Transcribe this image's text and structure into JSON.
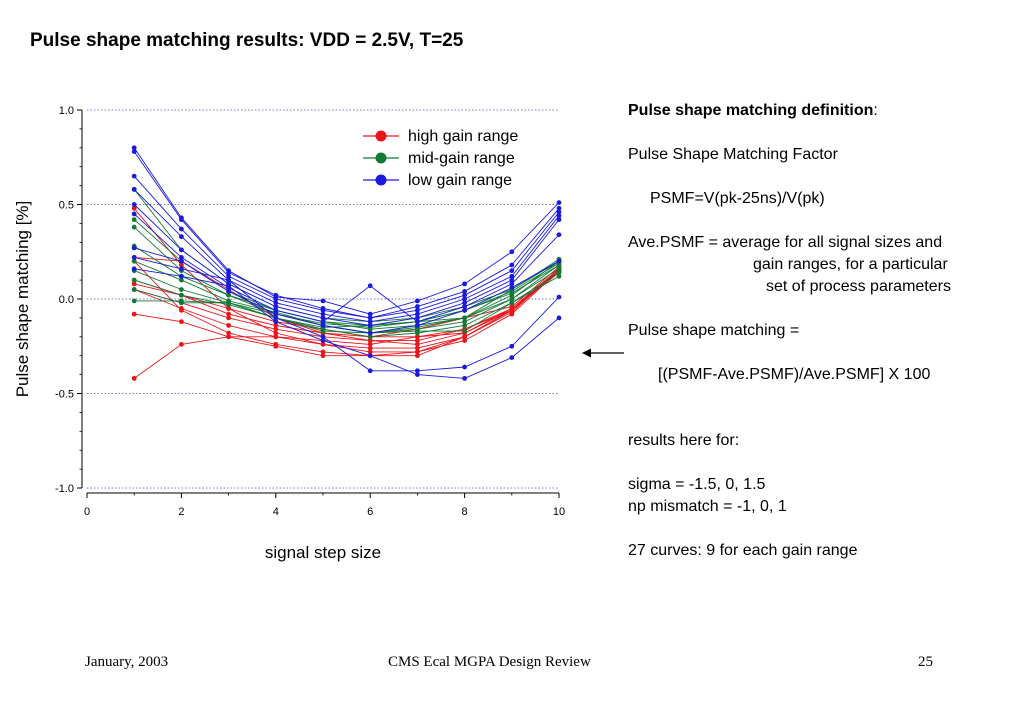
{
  "slide": {
    "title": "Pulse shape matching results: VDD = 2.5V, T=25",
    "footer": {
      "date": "January, 2003",
      "center": "CMS Ecal MGPA Design Review",
      "page": "25"
    }
  },
  "definition": {
    "heading": "Pulse shape matching definition",
    "heading_suffix": ":",
    "lines": {
      "factor_label": "Pulse Shape Matching Factor",
      "psmf_formula": "PSMF=V(pk-25ns)/V(pk)",
      "ave_line1": "Ave.PSMF = average for all signal sizes and",
      "ave_line2": "gain ranges, for a particular",
      "ave_line3": "set of process parameters",
      "psm_label": "Pulse shape matching =",
      "psm_formula": "[(PSMF-Ave.PSMF)/Ave.PSMF] X 100",
      "results_label": "results here for:",
      "sigma": "sigma = -1.5, 0, 1.5",
      "np_mismatch": "np mismatch = -1, 0, 1",
      "curves": "27 curves: 9 for each gain range"
    }
  },
  "chart_data": {
    "type": "line",
    "xlabel": "signal step size",
    "ylabel": "Pulse shape matching [%]",
    "xlim": [
      0,
      10
    ],
    "ylim": [
      -1.0,
      1.0
    ],
    "x_ticks": [
      0,
      2,
      4,
      6,
      8,
      10
    ],
    "y_ticks": [
      1.0,
      0.5,
      0.0,
      -0.5,
      -1.0
    ],
    "y_tick_labels": [
      "1.0",
      "0.5",
      "0.0",
      "-0.5",
      "-1.0"
    ],
    "y_grid": "dotted",
    "legend_position": "top-right",
    "x": [
      1,
      2,
      3,
      4,
      5,
      6,
      7,
      8,
      9,
      10
    ],
    "groups": [
      {
        "name": "high gain range",
        "color": "#e8141a",
        "curves": [
          [
            0.22,
            0.2,
            0.05,
            -0.1,
            -0.18,
            -0.2,
            -0.16,
            -0.1,
            -0.04,
            0.17
          ],
          [
            0.1,
            0.02,
            -0.05,
            -0.12,
            -0.16,
            -0.2,
            -0.2,
            -0.18,
            -0.06,
            0.15
          ],
          [
            0.08,
            0.02,
            -0.08,
            -0.14,
            -0.18,
            -0.22,
            -0.22,
            -0.16,
            -0.06,
            0.16
          ],
          [
            0.05,
            -0.02,
            -0.1,
            -0.16,
            -0.2,
            -0.22,
            -0.24,
            -0.18,
            -0.05,
            0.15
          ],
          [
            0.05,
            -0.05,
            -0.14,
            -0.2,
            -0.24,
            -0.26,
            -0.26,
            -0.2,
            -0.07,
            0.16
          ],
          [
            0.48,
            0.18,
            -0.05,
            -0.18,
            -0.24,
            -0.28,
            -0.28,
            -0.22,
            -0.08,
            0.15
          ],
          [
            0.2,
            -0.06,
            -0.18,
            -0.24,
            -0.28,
            -0.3,
            -0.28,
            -0.2,
            -0.06,
            0.14
          ],
          [
            -0.08,
            -0.12,
            -0.2,
            -0.25,
            -0.3,
            -0.3,
            -0.3,
            -0.2,
            -0.06,
            0.15
          ],
          [
            -0.42,
            -0.24,
            -0.2,
            -0.2,
            -0.22,
            -0.24,
            -0.2,
            -0.16,
            -0.05,
            0.16
          ]
        ]
      },
      {
        "name": "mid-gain range",
        "color": "#137a36",
        "curves": [
          [
            0.58,
            0.26,
            0.08,
            -0.04,
            -0.1,
            -0.12,
            -0.1,
            -0.04,
            0.05,
            0.2
          ],
          [
            0.42,
            0.2,
            0.04,
            -0.06,
            -0.12,
            -0.14,
            -0.12,
            -0.06,
            0.04,
            0.19
          ],
          [
            0.38,
            0.15,
            0.02,
            -0.08,
            -0.13,
            -0.15,
            -0.12,
            -0.06,
            0.03,
            0.18
          ],
          [
            0.28,
            0.12,
            0.02,
            -0.06,
            -0.12,
            -0.16,
            -0.14,
            -0.1,
            0.02,
            0.2
          ],
          [
            0.2,
            0.1,
            -0.01,
            -0.07,
            -0.14,
            -0.18,
            -0.15,
            -0.1,
            0.0,
            0.18
          ],
          [
            0.15,
            0.05,
            -0.02,
            -0.08,
            -0.14,
            -0.18,
            -0.16,
            -0.12,
            0.0,
            0.16
          ],
          [
            0.1,
            0.02,
            -0.03,
            -0.1,
            -0.16,
            -0.2,
            -0.18,
            -0.14,
            -0.02,
            0.14
          ],
          [
            0.05,
            -0.02,
            -0.02,
            -0.1,
            -0.17,
            -0.18,
            -0.17,
            -0.17,
            -0.02,
            0.12
          ],
          [
            -0.01,
            -0.01,
            -0.02,
            -0.1,
            -0.15,
            -0.14,
            -0.12,
            -0.1,
            0.05,
            0.21
          ]
        ]
      },
      {
        "name": "low gain range",
        "color": "#1a1adb",
        "curves": [
          [
            0.8,
            0.43,
            0.15,
            0.01,
            -0.01,
            -0.08,
            -0.01,
            0.08,
            0.25,
            0.51
          ],
          [
            0.78,
            0.42,
            0.14,
            0.02,
            -0.05,
            -0.1,
            -0.04,
            0.04,
            0.18,
            0.48
          ],
          [
            0.65,
            0.37,
            0.12,
            0.0,
            -0.06,
            -0.1,
            -0.06,
            0.02,
            0.15,
            0.46
          ],
          [
            0.58,
            0.33,
            0.1,
            -0.02,
            -0.08,
            -0.12,
            -0.08,
            0.0,
            0.12,
            0.44
          ],
          [
            0.5,
            0.26,
            0.08,
            -0.04,
            -0.1,
            -0.14,
            -0.1,
            -0.02,
            0.1,
            0.42
          ],
          [
            0.45,
            0.22,
            0.06,
            -0.06,
            -0.12,
            0.07,
            -0.12,
            -0.04,
            0.08,
            0.34
          ],
          [
            0.27,
            0.2,
            0.04,
            -0.08,
            -0.14,
            -0.18,
            -0.14,
            -0.06,
            0.06,
            0.2
          ],
          [
            0.22,
            0.16,
            0.1,
            -0.1,
            -0.2,
            -0.38,
            -0.38,
            -0.36,
            -0.25,
            0.01
          ],
          [
            0.16,
            0.12,
            0.07,
            -0.12,
            -0.22,
            -0.3,
            -0.4,
            -0.42,
            -0.31,
            -0.1
          ]
        ]
      }
    ]
  }
}
